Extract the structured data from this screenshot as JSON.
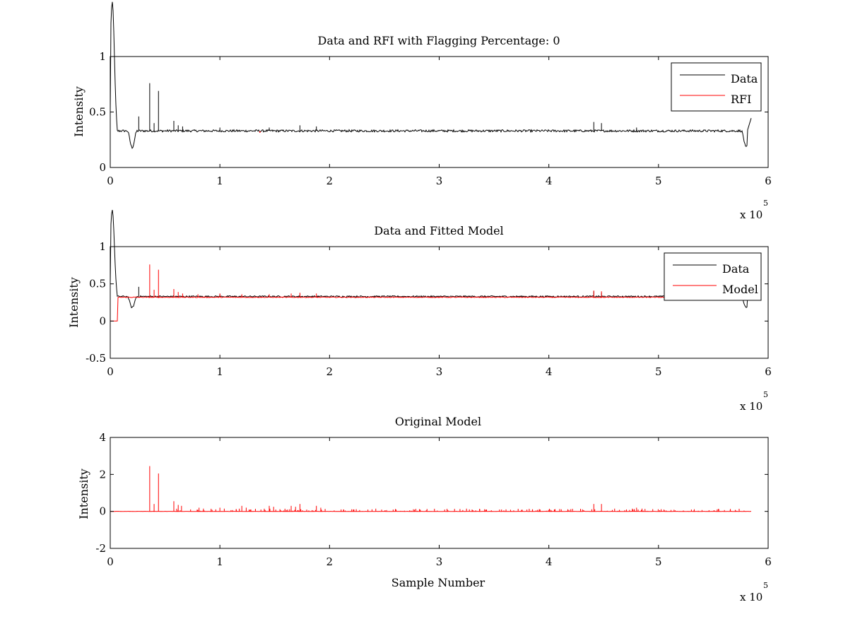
{
  "chart_data": [
    {
      "type": "line",
      "title": "Data and RFI with Flagging Percentage: 0",
      "xlabel": "",
      "ylabel": "Intensity",
      "xlim": [
        0,
        600000
      ],
      "ylim": [
        0,
        1
      ],
      "x_ticks": [
        0,
        1,
        2,
        3,
        4,
        5,
        6
      ],
      "y_ticks": [
        0,
        0.5,
        1
      ],
      "x_exponent": "x 10",
      "x_exponent_power": "5",
      "grid": false,
      "legend_position": "top-right",
      "series": [
        {
          "name": "Data",
          "color": "#000000",
          "baseline": 0.33,
          "start_peak": {
            "x": 2000,
            "y": 0.98
          },
          "dips": [
            {
              "x": 20000,
              "y": 0.18
            },
            {
              "x": 580000,
              "y": 0.18
            }
          ],
          "end_rise": {
            "x": 585000,
            "y": 0.46
          },
          "spikes": [
            {
              "x": 26000,
              "y": 0.46
            },
            {
              "x": 36000,
              "y": 0.76
            },
            {
              "x": 40000,
              "y": 0.4
            },
            {
              "x": 44000,
              "y": 0.69
            },
            {
              "x": 58000,
              "y": 0.42
            },
            {
              "x": 62000,
              "y": 0.38
            },
            {
              "x": 66000,
              "y": 0.37
            },
            {
              "x": 100000,
              "y": 0.36
            },
            {
              "x": 145000,
              "y": 0.36
            },
            {
              "x": 173000,
              "y": 0.38
            },
            {
              "x": 188000,
              "y": 0.37
            },
            {
              "x": 441000,
              "y": 0.41
            },
            {
              "x": 448000,
              "y": 0.4
            },
            {
              "x": 480000,
              "y": 0.36
            }
          ],
          "x_end": 585000
        },
        {
          "name": "RFI",
          "color": "#ff0000",
          "points": [
            {
              "x": 136000,
              "y": 0.32
            },
            {
              "x": 137000,
              "y": 0.32
            }
          ]
        }
      ]
    },
    {
      "type": "line",
      "title": "Data and Fitted Model",
      "xlabel": "",
      "ylabel": "Intensity",
      "xlim": [
        0,
        600000
      ],
      "ylim": [
        -0.5,
        1
      ],
      "x_ticks": [
        0,
        1,
        2,
        3,
        4,
        5,
        6
      ],
      "y_ticks": [
        -0.5,
        0,
        0.5,
        1
      ],
      "x_exponent": "x 10",
      "x_exponent_power": "5",
      "grid": false,
      "legend_position": "top-right",
      "series": [
        {
          "name": "Data",
          "color": "#000000",
          "baseline": 0.33,
          "start_peak": {
            "x": 2000,
            "y": 0.98
          },
          "dips": [
            {
              "x": 20000,
              "y": 0.18
            },
            {
              "x": 580000,
              "y": 0.18
            }
          ],
          "end_rise": {
            "x": 585000,
            "y": 0.46
          },
          "spikes": [
            {
              "x": 26000,
              "y": 0.46
            },
            {
              "x": 58000,
              "y": 0.38
            },
            {
              "x": 100000,
              "y": 0.36
            },
            {
              "x": 173000,
              "y": 0.37
            },
            {
              "x": 441000,
              "y": 0.4
            },
            {
              "x": 448000,
              "y": 0.38
            }
          ],
          "x_end": 585000
        },
        {
          "name": "Model",
          "color": "#ff0000",
          "baseline": 0.32,
          "zero_until": 7000,
          "spikes": [
            {
              "x": 36000,
              "y": 0.76
            },
            {
              "x": 40000,
              "y": 0.42
            },
            {
              "x": 44000,
              "y": 0.69
            },
            {
              "x": 58000,
              "y": 0.43
            },
            {
              "x": 62000,
              "y": 0.39
            },
            {
              "x": 66000,
              "y": 0.37
            },
            {
              "x": 80000,
              "y": 0.36
            },
            {
              "x": 100000,
              "y": 0.37
            },
            {
              "x": 120000,
              "y": 0.36
            },
            {
              "x": 145000,
              "y": 0.36
            },
            {
              "x": 165000,
              "y": 0.37
            },
            {
              "x": 173000,
              "y": 0.38
            },
            {
              "x": 188000,
              "y": 0.37
            },
            {
              "x": 441000,
              "y": 0.41
            },
            {
              "x": 448000,
              "y": 0.4
            }
          ],
          "x_end": 585000
        }
      ]
    },
    {
      "type": "line",
      "title": "Original Model",
      "xlabel": "Sample Number",
      "ylabel": "Intensity",
      "xlim": [
        0,
        600000
      ],
      "ylim": [
        -2,
        4
      ],
      "x_ticks": [
        0,
        1,
        2,
        3,
        4,
        5,
        6
      ],
      "y_ticks": [
        -2,
        0,
        2,
        4
      ],
      "x_exponent": "x 10",
      "x_exponent_power": "5",
      "grid": false,
      "series": [
        {
          "color": "#ff0000",
          "baseline": 0.0,
          "spikes": [
            {
              "x": 36000,
              "y": 2.45
            },
            {
              "x": 40000,
              "y": 0.4
            },
            {
              "x": 44000,
              "y": 2.05
            },
            {
              "x": 58000,
              "y": 0.55
            },
            {
              "x": 62000,
              "y": 0.35
            },
            {
              "x": 65000,
              "y": 0.3
            },
            {
              "x": 81000,
              "y": 0.2
            },
            {
              "x": 85000,
              "y": 0.15
            },
            {
              "x": 100000,
              "y": 0.2
            },
            {
              "x": 104000,
              "y": 0.15
            },
            {
              "x": 120000,
              "y": 0.3
            },
            {
              "x": 124000,
              "y": 0.2
            },
            {
              "x": 145000,
              "y": 0.3
            },
            {
              "x": 149000,
              "y": 0.25
            },
            {
              "x": 165000,
              "y": 0.3
            },
            {
              "x": 169000,
              "y": 0.25
            },
            {
              "x": 173000,
              "y": 0.4
            },
            {
              "x": 188000,
              "y": 0.3
            },
            {
              "x": 192000,
              "y": 0.2
            },
            {
              "x": 213000,
              "y": 0.1
            },
            {
              "x": 235000,
              "y": 0.1
            },
            {
              "x": 258000,
              "y": 0.1
            },
            {
              "x": 282000,
              "y": 0.12
            },
            {
              "x": 305000,
              "y": 0.1
            },
            {
              "x": 330000,
              "y": 0.1
            },
            {
              "x": 355000,
              "y": 0.1
            },
            {
              "x": 380000,
              "y": 0.1
            },
            {
              "x": 392000,
              "y": 0.1
            },
            {
              "x": 405000,
              "y": 0.1
            },
            {
              "x": 420000,
              "y": 0.12
            },
            {
              "x": 441000,
              "y": 0.4
            },
            {
              "x": 448000,
              "y": 0.4
            },
            {
              "x": 460000,
              "y": 0.15
            },
            {
              "x": 480000,
              "y": 0.2
            },
            {
              "x": 485000,
              "y": 0.15
            },
            {
              "x": 505000,
              "y": 0.1
            },
            {
              "x": 530000,
              "y": 0.1
            },
            {
              "x": 555000,
              "y": 0.1
            },
            {
              "x": 570000,
              "y": 0.08
            }
          ],
          "x_end": 585000
        }
      ]
    }
  ]
}
